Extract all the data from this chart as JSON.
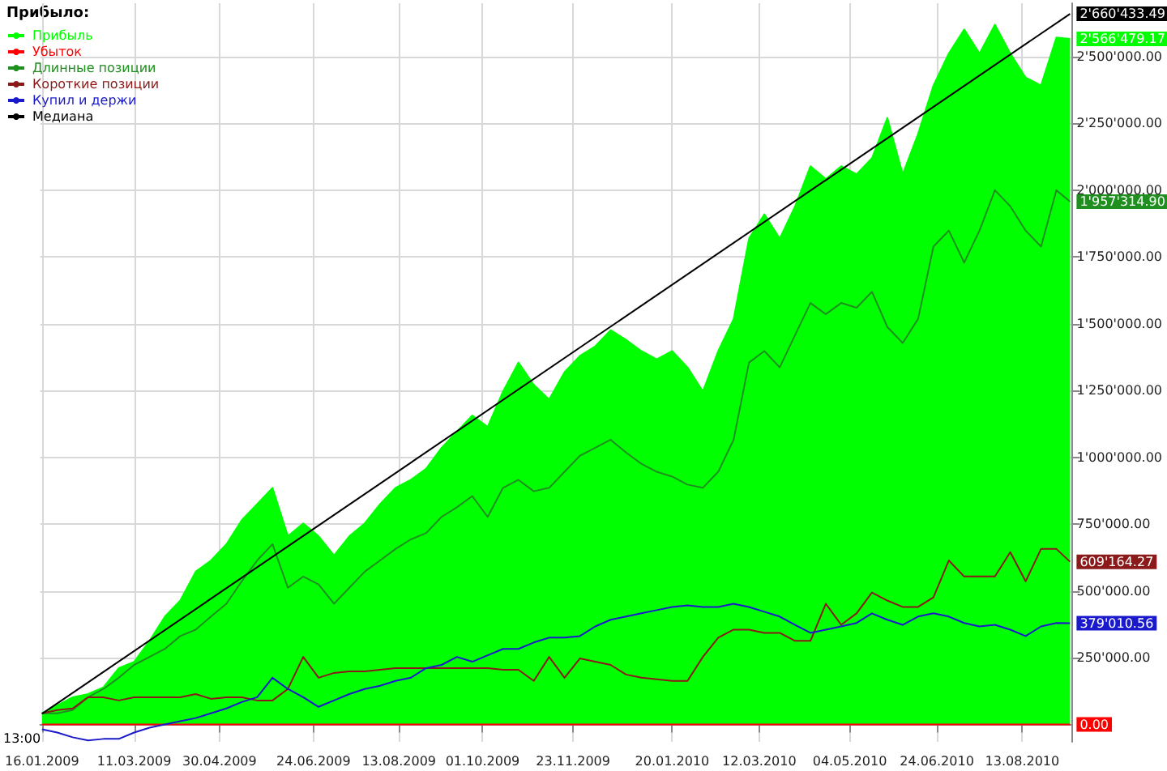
{
  "chart_data": {
    "type": "line",
    "legend_title": "Прибыло:",
    "legend": "top left",
    "grid": true,
    "line_style": "solid",
    "annotations": [
      "13:00"
    ],
    "xlim": [
      "2009-01-15",
      "2010-09-11"
    ],
    "xticks": [
      {
        "value": "2009-01-16",
        "label": "16.01.2009"
      },
      {
        "value": "2009-03-11",
        "label": "11.03.2009"
      },
      {
        "value": "2009-04-30",
        "label": "30.04.2009"
      },
      {
        "value": "2009-06-24",
        "label": "24.06.2009"
      },
      {
        "value": "2009-08-13",
        "label": "13.08.2009"
      },
      {
        "value": "2009-10-01",
        "label": "01.10.2009"
      },
      {
        "value": "2009-11-23",
        "label": "23.11.2009"
      },
      {
        "value": "2010-01-20",
        "label": "20.01.2010"
      },
      {
        "value": "2010-03-12",
        "label": "12.03.2010"
      },
      {
        "value": "2010-05-04",
        "label": "04.05.2010"
      },
      {
        "value": "2010-06-24",
        "label": "24.06.2010"
      },
      {
        "value": "2010-08-13",
        "label": "13.08.2010"
      }
    ],
    "ylim": [
      -65000,
      2700000
    ],
    "yticks": [
      {
        "value": 250000,
        "label": "250'000.00"
      },
      {
        "value": 500000,
        "label": "500'000.00"
      },
      {
        "value": 750000,
        "label": "750'000.00"
      },
      {
        "value": 1000000,
        "label": "1'000'000.00"
      },
      {
        "value": 1250000,
        "label": "1'250'000.00"
      },
      {
        "value": 1500000,
        "label": "1'500'000.00"
      },
      {
        "value": 1750000,
        "label": "1'750'000.00"
      },
      {
        "value": 2000000,
        "label": "2'000'000.00"
      },
      {
        "value": 2250000,
        "label": "2'250'000.00"
      },
      {
        "value": 2500000,
        "label": "2'500'000.00"
      }
    ],
    "x": [
      "2009-01-16",
      "2009-01-25",
      "2009-02-03",
      "2009-02-12",
      "2009-02-21",
      "2009-03-02",
      "2009-03-11",
      "2009-03-20",
      "2009-03-29",
      "2009-04-07",
      "2009-04-16",
      "2009-04-25",
      "2009-05-04",
      "2009-05-13",
      "2009-05-22",
      "2009-05-31",
      "2009-06-09",
      "2009-06-18",
      "2009-06-27",
      "2009-07-06",
      "2009-07-15",
      "2009-07-24",
      "2009-08-02",
      "2009-08-11",
      "2009-08-20",
      "2009-08-29",
      "2009-09-07",
      "2009-09-16",
      "2009-09-25",
      "2009-10-04",
      "2009-10-13",
      "2009-10-22",
      "2009-10-31",
      "2009-11-09",
      "2009-11-18",
      "2009-11-27",
      "2009-12-06",
      "2009-12-15",
      "2009-12-24",
      "2010-01-02",
      "2010-01-11",
      "2010-01-20",
      "2010-01-29",
      "2010-02-07",
      "2010-02-16",
      "2010-02-25",
      "2010-03-06",
      "2010-03-15",
      "2010-03-24",
      "2010-04-02",
      "2010-04-11",
      "2010-04-20",
      "2010-04-29",
      "2010-05-08",
      "2010-05-17",
      "2010-05-26",
      "2010-06-04",
      "2010-06-13",
      "2010-06-22",
      "2010-07-01",
      "2010-07-10",
      "2010-07-19",
      "2010-07-28",
      "2010-08-06",
      "2010-08-15",
      "2010-08-24",
      "2010-09-02",
      "2010-09-10"
    ],
    "series": [
      {
        "name": "Прибыль",
        "type": "area",
        "color": "#00ff00",
        "values": [
          42000,
          72000,
          102000,
          114000,
          139000,
          211000,
          235000,
          313000,
          404000,
          464000,
          572000,
          614000,
          675000,
          765000,
          825000,
          886000,
          705000,
          753000,
          705000,
          633000,
          705000,
          753000,
          825000,
          886000,
          916000,
          958000,
          1036000,
          1096000,
          1157000,
          1114000,
          1247000,
          1355000,
          1271000,
          1217000,
          1319000,
          1380000,
          1416000,
          1476000,
          1440000,
          1398000,
          1367000,
          1398000,
          1337000,
          1247000,
          1398000,
          1518000,
          1819000,
          1910000,
          1819000,
          1940000,
          2090000,
          2042000,
          2090000,
          2060000,
          2120000,
          2271000,
          2060000,
          2211000,
          2392000,
          2512000,
          2602000,
          2512000,
          2620000,
          2512000,
          2422000,
          2392000,
          2572000,
          2566479.17
        ],
        "value_labels": [
          null,
          null,
          null,
          null,
          null,
          null,
          null,
          null,
          null,
          null,
          null,
          null,
          null,
          null,
          null,
          null,
          null,
          null,
          null,
          null,
          null,
          null,
          null,
          null,
          null,
          null,
          null,
          null,
          null,
          null,
          null,
          null,
          null,
          null,
          null,
          null,
          null,
          null,
          null,
          null,
          null,
          null,
          null,
          null,
          null,
          null,
          null,
          null,
          null,
          null,
          null,
          null,
          null,
          null,
          null,
          null,
          null,
          null,
          null,
          null,
          null,
          null,
          null,
          null,
          null,
          null,
          null,
          "2'566'479.17"
        ]
      },
      {
        "name": "Убыток",
        "color": "#ff0000",
        "x": [
          "2009-01-16",
          "2010-09-10"
        ],
        "values": [
          0,
          0
        ],
        "value_labels": [
          null,
          "0.00"
        ]
      },
      {
        "name": "Длинные позиции",
        "color": "#1f8f1f",
        "values": [
          42000,
          42000,
          54000,
          102000,
          133000,
          175000,
          223000,
          253000,
          283000,
          331000,
          355000,
          404000,
          452000,
          536000,
          614000,
          675000,
          512000,
          554000,
          524000,
          452000,
          512000,
          572000,
          614000,
          657000,
          693000,
          717000,
          777000,
          813000,
          855000,
          777000,
          886000,
          916000,
          873000,
          886000,
          946000,
          1006000,
          1036000,
          1066000,
          1018000,
          976000,
          946000,
          928000,
          898000,
          886000,
          946000,
          1066000,
          1355000,
          1398000,
          1337000,
          1458000,
          1578000,
          1536000,
          1578000,
          1560000,
          1620000,
          1488000,
          1428000,
          1518000,
          1789000,
          1849000,
          1729000,
          1849000,
          2000000,
          1940000,
          1849000,
          1789000,
          2000000,
          1957314.9
        ],
        "value_labels": [
          null,
          null,
          null,
          null,
          null,
          null,
          null,
          null,
          null,
          null,
          null,
          null,
          null,
          null,
          null,
          null,
          null,
          null,
          null,
          null,
          null,
          null,
          null,
          null,
          null,
          null,
          null,
          null,
          null,
          null,
          null,
          null,
          null,
          null,
          null,
          null,
          null,
          null,
          null,
          null,
          null,
          null,
          null,
          null,
          null,
          null,
          null,
          null,
          null,
          null,
          null,
          null,
          null,
          null,
          null,
          null,
          null,
          null,
          null,
          null,
          null,
          null,
          null,
          null,
          null,
          null,
          null,
          "1'957'314.90"
        ]
      },
      {
        "name": "Короткие позиции",
        "color": "#8b1a1a",
        "values": [
          42000,
          54000,
          60000,
          102000,
          102000,
          90000,
          102000,
          102000,
          102000,
          102000,
          114000,
          96000,
          102000,
          102000,
          90000,
          90000,
          133000,
          253000,
          175000,
          193000,
          199000,
          199000,
          205000,
          211000,
          211000,
          211000,
          211000,
          211000,
          211000,
          211000,
          205000,
          205000,
          163000,
          253000,
          175000,
          247000,
          235000,
          223000,
          187000,
          175000,
          169000,
          163000,
          163000,
          253000,
          325000,
          355000,
          355000,
          343000,
          343000,
          313000,
          313000,
          452000,
          373000,
          416000,
          494000,
          464000,
          440000,
          440000,
          476000,
          614000,
          554000,
          554000,
          554000,
          645000,
          536000,
          657000,
          657000,
          609164.27
        ],
        "value_labels": [
          null,
          null,
          null,
          null,
          null,
          null,
          null,
          null,
          null,
          null,
          null,
          null,
          null,
          null,
          null,
          null,
          null,
          null,
          null,
          null,
          null,
          null,
          null,
          null,
          null,
          null,
          null,
          null,
          null,
          null,
          null,
          null,
          null,
          null,
          null,
          null,
          null,
          null,
          null,
          null,
          null,
          null,
          null,
          null,
          null,
          null,
          null,
          null,
          null,
          null,
          null,
          null,
          null,
          null,
          null,
          null,
          null,
          null,
          null,
          null,
          null,
          null,
          null,
          null,
          null,
          null,
          null,
          "609'164.27"
        ]
      },
      {
        "name": "Купил и держи",
        "color": "#1a1acc",
        "values": [
          -18000,
          -30000,
          -48000,
          -60000,
          -54000,
          -54000,
          -30000,
          -12000,
          0,
          12000,
          24000,
          42000,
          60000,
          84000,
          102000,
          175000,
          133000,
          102000,
          66000,
          90000,
          114000,
          133000,
          145000,
          163000,
          175000,
          211000,
          223000,
          253000,
          235000,
          259000,
          283000,
          283000,
          307000,
          325000,
          325000,
          331000,
          367000,
          392000,
          404000,
          416000,
          428000,
          440000,
          446000,
          440000,
          440000,
          452000,
          440000,
          422000,
          404000,
          373000,
          343000,
          355000,
          367000,
          380000,
          416000,
          392000,
          373000,
          404000,
          416000,
          404000,
          380000,
          367000,
          373000,
          355000,
          331000,
          367000,
          380000,
          379010.56
        ],
        "value_labels": [
          null,
          null,
          null,
          null,
          null,
          null,
          null,
          null,
          null,
          null,
          null,
          null,
          null,
          null,
          null,
          null,
          null,
          null,
          null,
          null,
          null,
          null,
          null,
          null,
          null,
          null,
          null,
          null,
          null,
          null,
          null,
          null,
          null,
          null,
          null,
          null,
          null,
          null,
          null,
          null,
          null,
          null,
          null,
          null,
          null,
          null,
          null,
          null,
          null,
          null,
          null,
          null,
          null,
          null,
          null,
          null,
          null,
          null,
          null,
          null,
          null,
          null,
          null,
          null,
          null,
          null,
          null,
          "379'010.56"
        ]
      },
      {
        "name": "Медиана",
        "color": "#000000",
        "x": [
          "2009-01-16",
          "2010-09-10"
        ],
        "values": [
          40000,
          2660433.49
        ],
        "value_labels": [
          null,
          "2'660'433.49"
        ]
      }
    ]
  }
}
